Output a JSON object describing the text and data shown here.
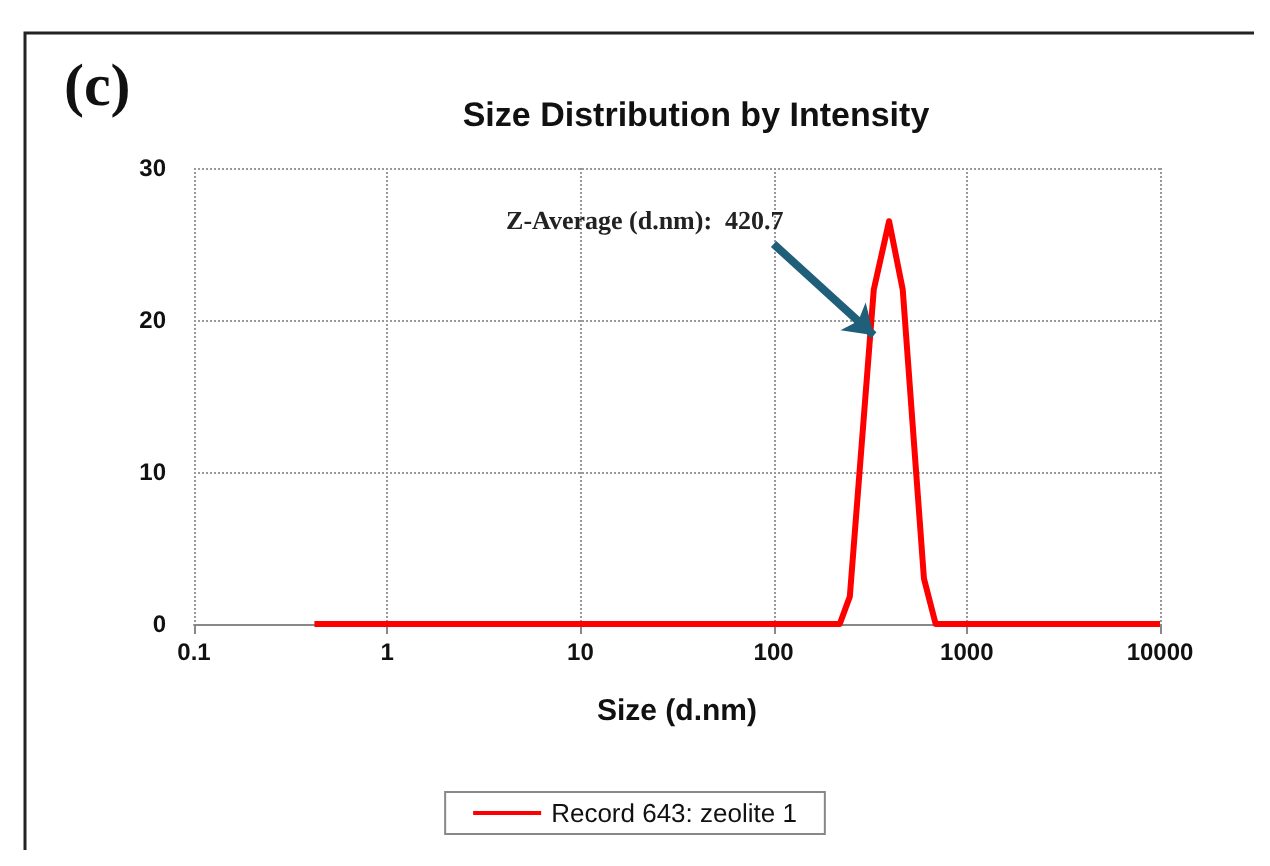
{
  "chart_data": {
    "type": "line",
    "title": "Size Distribution by Intensity",
    "xlabel": "Size (d.nm)",
    "annotations": [
      "(c)",
      {
        "text": "Z-Average (d.nm):  420.7",
        "x": 330,
        "y": 19
      }
    ],
    "x": [
      0.42,
      220,
      248,
      330,
      396,
      466,
      600,
      690,
      10000
    ],
    "series": [
      {
        "name": "Record 643: zeolite 1",
        "color": "#ff0000",
        "values": [
          0,
          0,
          1.8,
          22,
          26.5,
          22,
          3,
          0,
          0
        ]
      }
    ],
    "xlim": [
      0.1,
      10000
    ],
    "xticks": [
      0.1,
      1,
      10,
      100,
      1000,
      10000
    ],
    "ylim": [
      0,
      30
    ],
    "yticks": [
      0,
      10,
      20,
      30
    ],
    "log": "x",
    "grid": true,
    "legend": "bottom",
    "marker": "none",
    "line_style": "solid"
  }
}
